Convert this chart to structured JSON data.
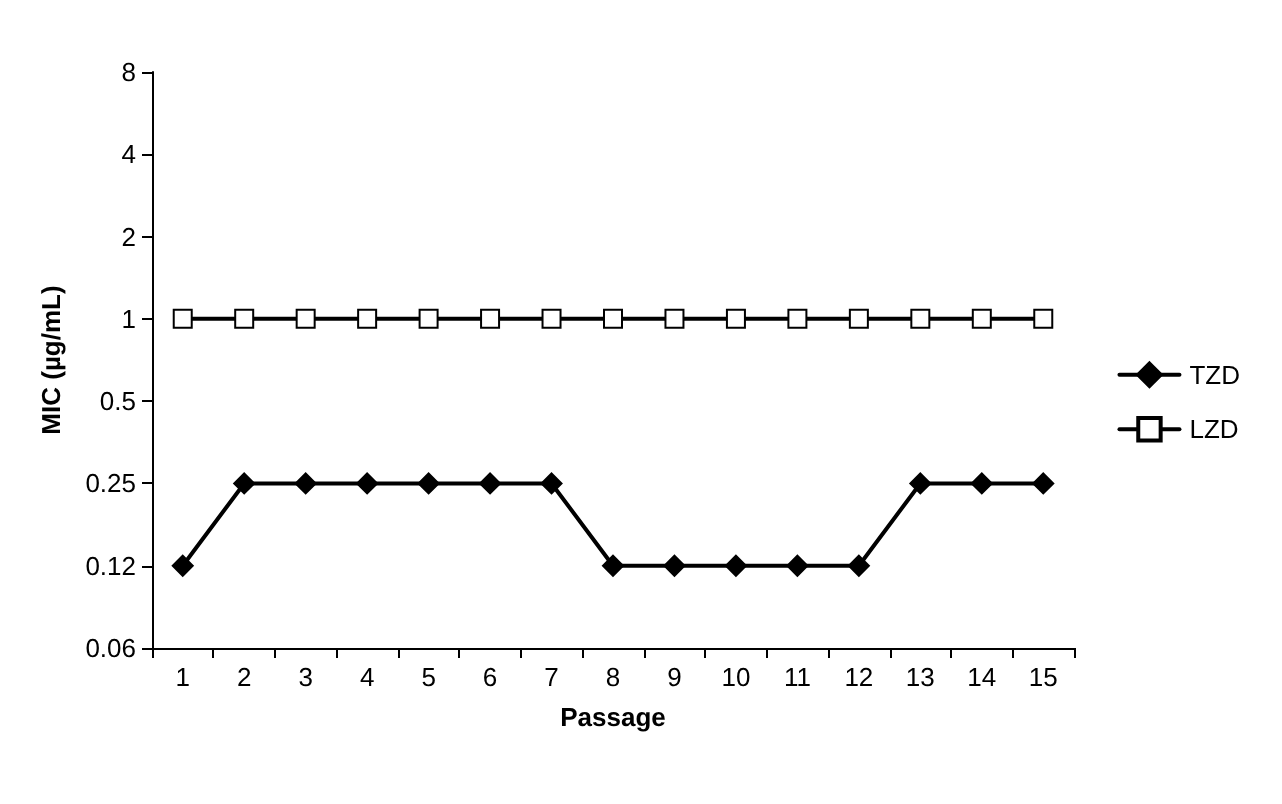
{
  "chart_data": {
    "type": "line",
    "xlabel": "Passage",
    "ylabel": "MIC (µg/mL)",
    "categories": [
      "1",
      "2",
      "3",
      "4",
      "5",
      "6",
      "7",
      "8",
      "9",
      "10",
      "11",
      "12",
      "13",
      "14",
      "15"
    ],
    "series": [
      {
        "name": "TZD",
        "color": "#000000",
        "marker": "diamond",
        "values": [
          0.125,
          0.25,
          0.25,
          0.25,
          0.25,
          0.25,
          0.25,
          0.125,
          0.125,
          0.125,
          0.125,
          0.125,
          0.25,
          0.25,
          0.25
        ]
      },
      {
        "name": "LZD",
        "color": "#000000",
        "marker": "square",
        "values": [
          1,
          1,
          1,
          1,
          1,
          1,
          1,
          1,
          1,
          1,
          1,
          1,
          1,
          1,
          1
        ]
      }
    ],
    "log": "y",
    "ylim": [
      0.0625,
      8
    ],
    "yticks": [
      {
        "value": 0.0625,
        "label": "0.06"
      },
      {
        "value": 0.125,
        "label": "0.12"
      },
      0.25,
      0.5,
      1,
      2,
      4,
      8
    ],
    "grid": false,
    "legend": "right"
  }
}
